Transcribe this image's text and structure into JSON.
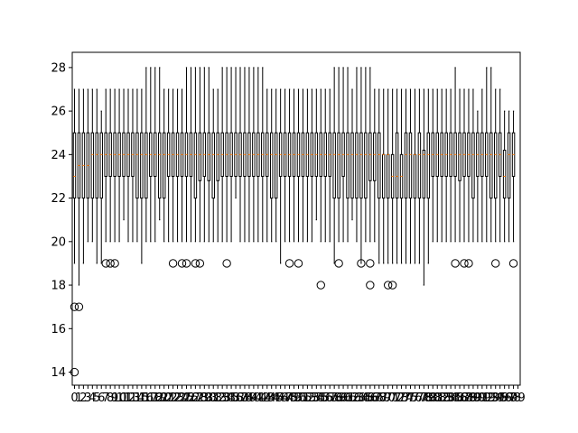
{
  "chart_data": {
    "type": "boxplot",
    "title": "",
    "xlabel": "",
    "ylabel": "",
    "ylim": [
      13.4,
      28.7
    ],
    "yticks": [
      14,
      16,
      18,
      20,
      22,
      24,
      26,
      28
    ],
    "grid": false,
    "legend": "none",
    "colors": {
      "box": "#000000",
      "median": "#ff7f0e",
      "background": "#ffffff"
    },
    "categories": [
      "0",
      "1",
      "2",
      "3",
      "4",
      "5",
      "6",
      "7",
      "8",
      "9",
      "10",
      "11",
      "12",
      "13",
      "14",
      "15",
      "16",
      "17",
      "18",
      "19",
      "20",
      "21",
      "22",
      "23",
      "24",
      "25",
      "26",
      "27",
      "28",
      "29",
      "30",
      "31",
      "32",
      "33",
      "34",
      "35",
      "36",
      "37",
      "38",
      "39",
      "40",
      "41",
      "42",
      "43",
      "44",
      "45",
      "46",
      "47",
      "48",
      "49",
      "50",
      "51",
      "52",
      "53",
      "54",
      "55",
      "56",
      "57",
      "58",
      "59",
      "60",
      "61",
      "62",
      "63",
      "64",
      "65",
      "66",
      "67",
      "68",
      "69",
      "70",
      "71",
      "72",
      "73",
      "74",
      "75",
      "76",
      "77",
      "78",
      "79",
      "80",
      "81",
      "82",
      "83",
      "84",
      "85",
      "86",
      "87",
      "88",
      "89",
      "90",
      "91",
      "92",
      "93",
      "94",
      "95",
      "96",
      "97",
      "98",
      "99"
    ],
    "boxes": [
      {
        "whislo": 19,
        "q1": 22,
        "med": 23,
        "q3": 25,
        "whishi": 27,
        "fliers": [
          17,
          14
        ]
      },
      {
        "whislo": 18,
        "q1": 22,
        "med": 23.5,
        "q3": 25,
        "whishi": 27,
        "fliers": [
          17
        ]
      },
      {
        "whislo": 19,
        "q1": 22,
        "med": 23.5,
        "q3": 25,
        "whishi": 27,
        "fliers": []
      },
      {
        "whislo": 20,
        "q1": 22,
        "med": 23.5,
        "q3": 25,
        "whishi": 27,
        "fliers": []
      },
      {
        "whislo": 20,
        "q1": 22,
        "med": 24,
        "q3": 25,
        "whishi": 27,
        "fliers": []
      },
      {
        "whislo": 19,
        "q1": 22,
        "med": 24,
        "q3": 25,
        "whishi": 27,
        "fliers": []
      },
      {
        "whislo": 19,
        "q1": 22,
        "med": 24,
        "q3": 25,
        "whishi": 26,
        "fliers": []
      },
      {
        "whislo": 20,
        "q1": 23,
        "med": 24,
        "q3": 25,
        "whishi": 27,
        "fliers": [
          19
        ]
      },
      {
        "whislo": 20,
        "q1": 23,
        "med": 24,
        "q3": 25,
        "whishi": 27,
        "fliers": [
          19
        ]
      },
      {
        "whislo": 20,
        "q1": 23,
        "med": 24,
        "q3": 25,
        "whishi": 27,
        "fliers": [
          19
        ]
      },
      {
        "whislo": 20,
        "q1": 23,
        "med": 24,
        "q3": 25,
        "whishi": 27,
        "fliers": []
      },
      {
        "whislo": 21,
        "q1": 23,
        "med": 24,
        "q3": 25,
        "whishi": 27,
        "fliers": []
      },
      {
        "whislo": 20,
        "q1": 23,
        "med": 24,
        "q3": 25,
        "whishi": 27,
        "fliers": []
      },
      {
        "whislo": 20,
        "q1": 23,
        "med": 24,
        "q3": 25,
        "whishi": 27,
        "fliers": []
      },
      {
        "whislo": 20,
        "q1": 22,
        "med": 24,
        "q3": 25,
        "whishi": 27,
        "fliers": []
      },
      {
        "whislo": 19,
        "q1": 22,
        "med": 24,
        "q3": 25,
        "whishi": 27,
        "fliers": []
      },
      {
        "whislo": 20,
        "q1": 22,
        "med": 24,
        "q3": 25,
        "whishi": 28,
        "fliers": []
      },
      {
        "whislo": 20,
        "q1": 23,
        "med": 24,
        "q3": 25,
        "whishi": 28,
        "fliers": []
      },
      {
        "whislo": 20,
        "q1": 23,
        "med": 24,
        "q3": 25,
        "whishi": 28,
        "fliers": []
      },
      {
        "whislo": 21,
        "q1": 22,
        "med": 24,
        "q3": 25,
        "whishi": 28,
        "fliers": []
      },
      {
        "whislo": 20,
        "q1": 22,
        "med": 24,
        "q3": 25,
        "whishi": 27,
        "fliers": []
      },
      {
        "whislo": 20,
        "q1": 23,
        "med": 24,
        "q3": 25,
        "whishi": 27,
        "fliers": []
      },
      {
        "whislo": 20,
        "q1": 23,
        "med": 24,
        "q3": 25,
        "whishi": 27,
        "fliers": [
          19
        ]
      },
      {
        "whislo": 20,
        "q1": 23,
        "med": 24,
        "q3": 25,
        "whishi": 27,
        "fliers": []
      },
      {
        "whislo": 20,
        "q1": 23,
        "med": 24,
        "q3": 25,
        "whishi": 27,
        "fliers": [
          19
        ]
      },
      {
        "whislo": 20,
        "q1": 23,
        "med": 24,
        "q3": 25,
        "whishi": 28,
        "fliers": [
          19
        ]
      },
      {
        "whislo": 20,
        "q1": 23,
        "med": 24,
        "q3": 25,
        "whishi": 28,
        "fliers": []
      },
      {
        "whislo": 20,
        "q1": 22,
        "med": 24,
        "q3": 25,
        "whishi": 28,
        "fliers": [
          19
        ]
      },
      {
        "whislo": 20,
        "q1": 22.8,
        "med": 24,
        "q3": 25,
        "whishi": 28,
        "fliers": [
          19
        ]
      },
      {
        "whislo": 20,
        "q1": 23,
        "med": 24,
        "q3": 25,
        "whishi": 28,
        "fliers": []
      },
      {
        "whislo": 20,
        "q1": 22.8,
        "med": 24,
        "q3": 25,
        "whishi": 28,
        "fliers": []
      },
      {
        "whislo": 20,
        "q1": 22,
        "med": 24,
        "q3": 25,
        "whishi": 27,
        "fliers": []
      },
      {
        "whislo": 20,
        "q1": 22.8,
        "med": 24,
        "q3": 25,
        "whishi": 27,
        "fliers": []
      },
      {
        "whislo": 20,
        "q1": 23,
        "med": 24,
        "q3": 25,
        "whishi": 28,
        "fliers": []
      },
      {
        "whislo": 20,
        "q1": 23,
        "med": 24,
        "q3": 25,
        "whishi": 28,
        "fliers": [
          19
        ]
      },
      {
        "whislo": 20,
        "q1": 23,
        "med": 24,
        "q3": 25,
        "whishi": 28,
        "fliers": []
      },
      {
        "whislo": 22,
        "q1": 23,
        "med": 24,
        "q3": 25,
        "whishi": 28,
        "fliers": []
      },
      {
        "whislo": 20,
        "q1": 23,
        "med": 24,
        "q3": 25,
        "whishi": 28,
        "fliers": []
      },
      {
        "whislo": 20,
        "q1": 23,
        "med": 24,
        "q3": 25,
        "whishi": 28,
        "fliers": []
      },
      {
        "whislo": 20,
        "q1": 23,
        "med": 24,
        "q3": 25,
        "whishi": 28,
        "fliers": []
      },
      {
        "whislo": 20,
        "q1": 23,
        "med": 24,
        "q3": 25,
        "whishi": 28,
        "fliers": []
      },
      {
        "whislo": 20,
        "q1": 23,
        "med": 24,
        "q3": 25,
        "whishi": 28,
        "fliers": []
      },
      {
        "whislo": 20,
        "q1": 23,
        "med": 24,
        "q3": 25,
        "whishi": 28,
        "fliers": []
      },
      {
        "whislo": 20,
        "q1": 23,
        "med": 24,
        "q3": 25,
        "whishi": 27,
        "fliers": []
      },
      {
        "whislo": 20,
        "q1": 22,
        "med": 24,
        "q3": 25,
        "whishi": 27,
        "fliers": []
      },
      {
        "whislo": 20,
        "q1": 22,
        "med": 24,
        "q3": 25,
        "whishi": 27,
        "fliers": []
      },
      {
        "whislo": 19,
        "q1": 23,
        "med": 24,
        "q3": 25,
        "whishi": 27,
        "fliers": []
      },
      {
        "whislo": 20,
        "q1": 23,
        "med": 24,
        "q3": 25,
        "whishi": 27,
        "fliers": []
      },
      {
        "whislo": 20,
        "q1": 23,
        "med": 24,
        "q3": 25,
        "whishi": 27,
        "fliers": [
          19
        ]
      },
      {
        "whislo": 20,
        "q1": 23,
        "med": 24,
        "q3": 25,
        "whishi": 27,
        "fliers": []
      },
      {
        "whislo": 20,
        "q1": 23,
        "med": 24,
        "q3": 25,
        "whishi": 27,
        "fliers": [
          19
        ]
      },
      {
        "whislo": 20,
        "q1": 23,
        "med": 24,
        "q3": 25,
        "whishi": 27,
        "fliers": []
      },
      {
        "whislo": 20,
        "q1": 23,
        "med": 24,
        "q3": 25,
        "whishi": 27,
        "fliers": []
      },
      {
        "whislo": 20,
        "q1": 23,
        "med": 24,
        "q3": 25,
        "whishi": 27,
        "fliers": []
      },
      {
        "whislo": 21,
        "q1": 23,
        "med": 24,
        "q3": 25,
        "whishi": 27,
        "fliers": []
      },
      {
        "whislo": 20,
        "q1": 23,
        "med": 24,
        "q3": 25,
        "whishi": 27,
        "fliers": [
          18
        ]
      },
      {
        "whislo": 20,
        "q1": 23,
        "med": 24,
        "q3": 25,
        "whishi": 27,
        "fliers": []
      },
      {
        "whislo": 20,
        "q1": 23,
        "med": 24,
        "q3": 25,
        "whishi": 27,
        "fliers": []
      },
      {
        "whislo": 19,
        "q1": 22,
        "med": 24,
        "q3": 25,
        "whishi": 28,
        "fliers": []
      },
      {
        "whislo": 20,
        "q1": 22,
        "med": 24,
        "q3": 25,
        "whishi": 28,
        "fliers": [
          19
        ]
      },
      {
        "whislo": 20,
        "q1": 23,
        "med": 24,
        "q3": 25,
        "whishi": 28,
        "fliers": []
      },
      {
        "whislo": 20,
        "q1": 22,
        "med": 24,
        "q3": 25,
        "whishi": 28,
        "fliers": []
      },
      {
        "whislo": 21,
        "q1": 22,
        "med": 24,
        "q3": 25,
        "whishi": 27,
        "fliers": []
      },
      {
        "whislo": 20,
        "q1": 22,
        "med": 24,
        "q3": 25,
        "whishi": 28,
        "fliers": []
      },
      {
        "whislo": 19,
        "q1": 22,
        "med": 24,
        "q3": 25,
        "whishi": 28,
        "fliers": [
          19
        ]
      },
      {
        "whislo": 20,
        "q1": 22,
        "med": 24,
        "q3": 25,
        "whishi": 28,
        "fliers": []
      },
      {
        "whislo": 20,
        "q1": 22.8,
        "med": 24,
        "q3": 25,
        "whishi": 28,
        "fliers": [
          18,
          19
        ]
      },
      {
        "whislo": 20,
        "q1": 22.8,
        "med": 24,
        "q3": 25,
        "whishi": 27,
        "fliers": []
      },
      {
        "whislo": 19,
        "q1": 22,
        "med": 24,
        "q3": 25,
        "whishi": 27,
        "fliers": []
      },
      {
        "whislo": 19,
        "q1": 22,
        "med": 24,
        "q3": 24,
        "whishi": 27,
        "fliers": []
      },
      {
        "whislo": 19,
        "q1": 22,
        "med": 24,
        "q3": 24,
        "whishi": 27,
        "fliers": [
          18
        ]
      },
      {
        "whislo": 19,
        "q1": 22,
        "med": 23,
        "q3": 24,
        "whishi": 27,
        "fliers": [
          18
        ]
      },
      {
        "whislo": 19,
        "q1": 22,
        "med": 23,
        "q3": 25,
        "whishi": 27,
        "fliers": []
      },
      {
        "whislo": 19,
        "q1": 22,
        "med": 23,
        "q3": 24,
        "whishi": 27,
        "fliers": []
      },
      {
        "whislo": 19,
        "q1": 22,
        "med": 24,
        "q3": 25,
        "whishi": 27,
        "fliers": []
      },
      {
        "whislo": 19,
        "q1": 22,
        "med": 24,
        "q3": 25,
        "whishi": 27,
        "fliers": []
      },
      {
        "whislo": 19,
        "q1": 22,
        "med": 24,
        "q3": 24,
        "whishi": 27,
        "fliers": []
      },
      {
        "whislo": 19,
        "q1": 22,
        "med": 24,
        "q3": 25,
        "whishi": 27,
        "fliers": []
      },
      {
        "whislo": 18,
        "q1": 22,
        "med": 24,
        "q3": 24.2,
        "whishi": 27,
        "fliers": []
      },
      {
        "whislo": 19,
        "q1": 22,
        "med": 24,
        "q3": 25,
        "whishi": 27,
        "fliers": []
      },
      {
        "whislo": 20,
        "q1": 23,
        "med": 24,
        "q3": 25,
        "whishi": 27,
        "fliers": []
      },
      {
        "whislo": 20,
        "q1": 23,
        "med": 24,
        "q3": 25,
        "whishi": 27,
        "fliers": []
      },
      {
        "whislo": 20,
        "q1": 23,
        "med": 24,
        "q3": 25,
        "whishi": 27,
        "fliers": []
      },
      {
        "whislo": 20,
        "q1": 23,
        "med": 24,
        "q3": 25,
        "whishi": 27,
        "fliers": []
      },
      {
        "whislo": 20,
        "q1": 23,
        "med": 24,
        "q3": 25,
        "whishi": 27,
        "fliers": []
      },
      {
        "whislo": 20,
        "q1": 23,
        "med": 24,
        "q3": 25,
        "whishi": 28,
        "fliers": [
          19
        ]
      },
      {
        "whislo": 20,
        "q1": 22.8,
        "med": 24,
        "q3": 25,
        "whishi": 27,
        "fliers": []
      },
      {
        "whislo": 20,
        "q1": 23,
        "med": 24,
        "q3": 25,
        "whishi": 27,
        "fliers": [
          19
        ]
      },
      {
        "whislo": 20,
        "q1": 23,
        "med": 24,
        "q3": 25,
        "whishi": 27,
        "fliers": [
          19
        ]
      },
      {
        "whislo": 20,
        "q1": 22,
        "med": 24,
        "q3": 25,
        "whishi": 27,
        "fliers": []
      },
      {
        "whislo": 20,
        "q1": 23,
        "med": 24,
        "q3": 25,
        "whishi": 26,
        "fliers": []
      },
      {
        "whislo": 20,
        "q1": 23,
        "med": 24,
        "q3": 25,
        "whishi": 27,
        "fliers": []
      },
      {
        "whislo": 20,
        "q1": 23,
        "med": 24,
        "q3": 25,
        "whishi": 28,
        "fliers": []
      },
      {
        "whislo": 20,
        "q1": 22,
        "med": 24,
        "q3": 25,
        "whishi": 28,
        "fliers": []
      },
      {
        "whislo": 20,
        "q1": 22,
        "med": 24,
        "q3": 25,
        "whishi": 27,
        "fliers": [
          19
        ]
      },
      {
        "whislo": 20,
        "q1": 23,
        "med": 24,
        "q3": 25,
        "whishi": 27,
        "fliers": []
      },
      {
        "whislo": 20,
        "q1": 22,
        "med": 23,
        "q3": 24.2,
        "whishi": 26,
        "fliers": []
      },
      {
        "whislo": 20,
        "q1": 22,
        "med": 24,
        "q3": 25,
        "whishi": 26,
        "fliers": []
      },
      {
        "whislo": 20,
        "q1": 23,
        "med": 24,
        "q3": 25,
        "whishi": 26,
        "fliers": [
          19
        ]
      }
    ]
  }
}
